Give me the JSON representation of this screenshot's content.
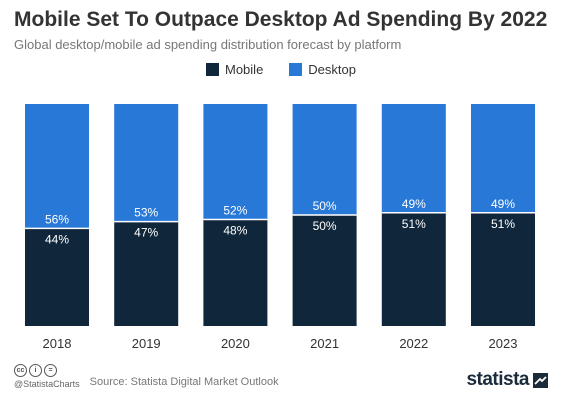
{
  "title": "Mobile Set To Outpace Desktop Ad Spending By 2022",
  "subtitle": "Global desktop/mobile ad spending distribution forecast by platform",
  "colors": {
    "mobile": "#10263a",
    "desktop": "#2878d8",
    "divider": "#ffffff"
  },
  "chart_data": {
    "type": "bar",
    "stacked": true,
    "categories": [
      "2018",
      "2019",
      "2020",
      "2021",
      "2022",
      "2023"
    ],
    "series": [
      {
        "name": "Mobile",
        "values": [
          44,
          47,
          48,
          50,
          51,
          51
        ]
      },
      {
        "name": "Desktop",
        "values": [
          56,
          53,
          52,
          50,
          49,
          49
        ]
      }
    ],
    "unit": "%",
    "ylim": [
      0,
      100
    ],
    "grid": false,
    "legend_position": "top-center"
  },
  "footer": {
    "cc_icons": [
      "cc-icon",
      "by-icon",
      "nd-icon"
    ],
    "handle": "@StatistaCharts",
    "source": "Source: Statista Digital Market Outlook",
    "brand": "statista",
    "brand_icon": "statista-logo-icon"
  }
}
